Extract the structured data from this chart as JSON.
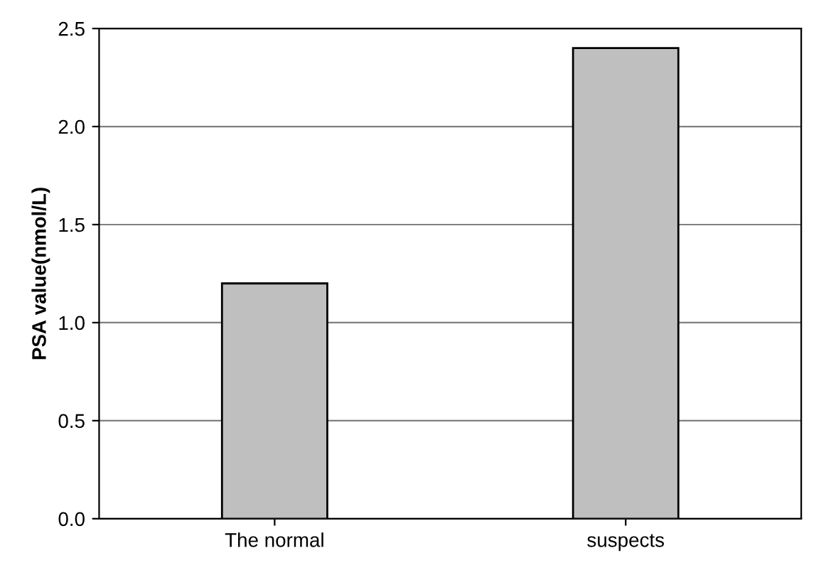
{
  "chart_data": {
    "type": "bar",
    "ylabel": "PSA value(nmol/L)",
    "categories": [
      "The normal",
      "suspects"
    ],
    "values": [
      1.2,
      2.4
    ],
    "color": "#bfbfbf",
    "ylim": [
      0,
      2.5
    ],
    "yticks": [
      {
        "value": 0,
        "label": "0.0"
      },
      {
        "value": 0.5,
        "label": "0.5"
      },
      {
        "value": 1.0,
        "label": "1.0"
      },
      {
        "value": 1.5,
        "label": "1.5"
      },
      {
        "value": 2.0,
        "label": "2.0"
      },
      {
        "value": 2.5,
        "label": "2.5"
      }
    ],
    "grid": "y",
    "legend": false
  }
}
